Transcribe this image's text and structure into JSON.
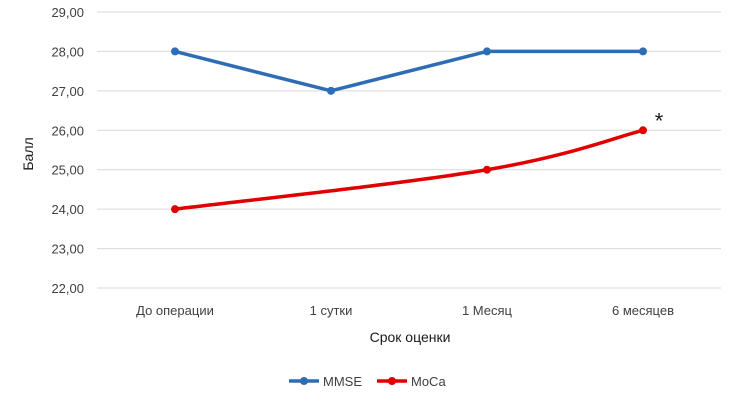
{
  "chart_data": {
    "type": "line",
    "title": "",
    "xlabel": "Срок оценки",
    "ylabel": "Балл",
    "categories": [
      "До операции",
      "1 сутки",
      "1 Месяц",
      "6 месяцев"
    ],
    "ylim": [
      22,
      29
    ],
    "yticks": [
      "22,00",
      "23,00",
      "24,00",
      "25,00",
      "26,00",
      "27,00",
      "28,00",
      "29,00"
    ],
    "grid": true,
    "legend_position": "bottom",
    "series": [
      {
        "name": "MMSE",
        "values": [
          28,
          27,
          28,
          28
        ],
        "color": "#2e6db4",
        "smooth": false
      },
      {
        "name": "MoCa",
        "values": [
          24,
          null,
          25,
          26
        ],
        "color": "#e00000",
        "smooth": true
      }
    ],
    "annotations": [
      {
        "text": "*",
        "series": "MoCa",
        "category": "6 месяцев"
      }
    ]
  }
}
